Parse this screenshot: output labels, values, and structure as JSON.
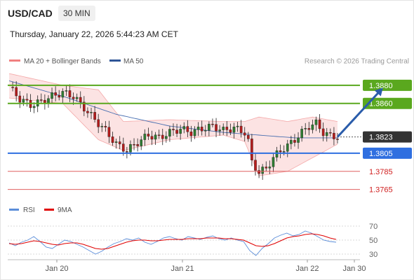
{
  "header": {
    "symbol": "USD/CAD",
    "timeframe": "30 MIN",
    "datetime": "Thursday, January 22, 2026 5:44:23 AM CET"
  },
  "legend": {
    "ma20": "MA 20 + Bollinger Bands",
    "ma50": "MA 50",
    "ma20_color": "#f08080",
    "ma50_color": "#2f5597",
    "source": "Research © 2026 Trading Central"
  },
  "rsi_legend": {
    "rsi": "RSI",
    "ma9": "9MA",
    "rsi_color": "#5b8dd9",
    "ma9_color": "#e00000"
  },
  "chart_data": [
    {
      "type": "candlestick",
      "title": "USD/CAD 30 MIN",
      "price_range": [
        1.3757,
        1.39
      ],
      "current_price": "1.3823",
      "levels": [
        {
          "label": "1.3880",
          "value": 1.388,
          "kind": "resistance",
          "color": "#5aa81e"
        },
        {
          "label": "1.3860",
          "value": 1.386,
          "kind": "resistance",
          "color": "#5aa81e"
        },
        {
          "label": "1.3805",
          "value": 1.3805,
          "kind": "pivot",
          "color": "#2f6fe0"
        },
        {
          "label": "1.3785",
          "value": 1.3785,
          "kind": "support",
          "color": "#e06060"
        },
        {
          "label": "1.3765",
          "value": 1.3765,
          "kind": "support",
          "color": "#e06060"
        }
      ],
      "x_tick_labels": [
        "Jan 20",
        "Jan 21",
        "Jan 22",
        "Jan 30"
      ],
      "close_path": [
        [
          0,
          1.3878
        ],
        [
          3,
          1.3865
        ],
        [
          6,
          1.3858
        ],
        [
          9,
          1.3862
        ],
        [
          12,
          1.3868
        ],
        [
          15,
          1.3872
        ],
        [
          18,
          1.3868
        ],
        [
          21,
          1.3855
        ],
        [
          24,
          1.3842
        ],
        [
          27,
          1.383
        ],
        [
          30,
          1.3815
        ],
        [
          33,
          1.3808
        ],
        [
          36,
          1.3817
        ],
        [
          39,
          1.3825
        ],
        [
          42,
          1.3822
        ],
        [
          45,
          1.3828
        ],
        [
          48,
          1.3832
        ],
        [
          51,
          1.3828
        ],
        [
          54,
          1.3832
        ],
        [
          57,
          1.3835
        ],
        [
          60,
          1.383
        ],
        [
          63,
          1.3833
        ],
        [
          66,
          1.3828
        ],
        [
          67,
          1.3818
        ],
        [
          68,
          1.3795
        ],
        [
          70,
          1.3784
        ],
        [
          72,
          1.3788
        ],
        [
          74,
          1.38
        ],
        [
          76,
          1.3808
        ],
        [
          78,
          1.3813
        ],
        [
          80,
          1.382
        ],
        [
          82,
          1.3828
        ],
        [
          84,
          1.3835
        ],
        [
          86,
          1.3838
        ],
        [
          88,
          1.3828
        ],
        [
          90,
          1.3824
        ],
        [
          92,
          1.3823
        ]
      ],
      "ma50_path": [
        [
          0,
          1.3885
        ],
        [
          15,
          1.3868
        ],
        [
          30,
          1.3848
        ],
        [
          45,
          1.3835
        ],
        [
          60,
          1.3828
        ],
        [
          70,
          1.3825
        ],
        [
          80,
          1.3822
        ],
        [
          92,
          1.3822
        ]
      ],
      "bollinger_upper_path": [
        [
          0,
          1.3893
        ],
        [
          15,
          1.388
        ],
        [
          25,
          1.3875
        ],
        [
          32,
          1.384
        ],
        [
          45,
          1.3842
        ],
        [
          60,
          1.384
        ],
        [
          66,
          1.384
        ],
        [
          70,
          1.3845
        ],
        [
          78,
          1.384
        ],
        [
          85,
          1.3845
        ],
        [
          92,
          1.384
        ]
      ],
      "bollinger_lower_path": [
        [
          0,
          1.3866
        ],
        [
          15,
          1.386
        ],
        [
          25,
          1.382
        ],
        [
          32,
          1.3808
        ],
        [
          45,
          1.382
        ],
        [
          60,
          1.3825
        ],
        [
          66,
          1.3818
        ],
        [
          70,
          1.378
        ],
        [
          78,
          1.3785
        ],
        [
          85,
          1.38
        ],
        [
          92,
          1.3815
        ]
      ],
      "forecast_arrow": {
        "from": [
          92,
          1.3823
        ],
        "to": [
          100,
          1.3877
        ]
      }
    },
    {
      "type": "line",
      "title": "RSI",
      "ylim": [
        20,
        80
      ],
      "y_tick_labels": [
        "70",
        "50",
        "30"
      ],
      "series": [
        {
          "name": "RSI",
          "values": [
            46,
            42,
            47,
            50,
            55,
            48,
            40,
            38,
            44,
            50,
            48,
            44,
            40,
            35,
            30,
            34,
            40,
            45,
            48,
            52,
            50,
            53,
            47,
            44,
            48,
            53,
            55,
            52,
            50,
            55,
            53,
            51,
            54,
            56,
            52,
            50,
            53,
            50,
            48,
            35,
            28,
            38,
            45,
            53,
            57,
            60,
            56,
            58,
            63,
            60,
            55,
            50,
            48,
            47
          ]
        },
        {
          "name": "9MA",
          "values": [
            45,
            44,
            45,
            47,
            49,
            48,
            46,
            44,
            43,
            45,
            46,
            46,
            44,
            41,
            38,
            37,
            38,
            41,
            44,
            47,
            49,
            50,
            50,
            49,
            49,
            50,
            51,
            51,
            51,
            52,
            52,
            52,
            53,
            53,
            53,
            52,
            52,
            51,
            50,
            46,
            42,
            41,
            42,
            45,
            49,
            53,
            55,
            56,
            58,
            59,
            58,
            56,
            53,
            51
          ]
        }
      ]
    }
  ]
}
